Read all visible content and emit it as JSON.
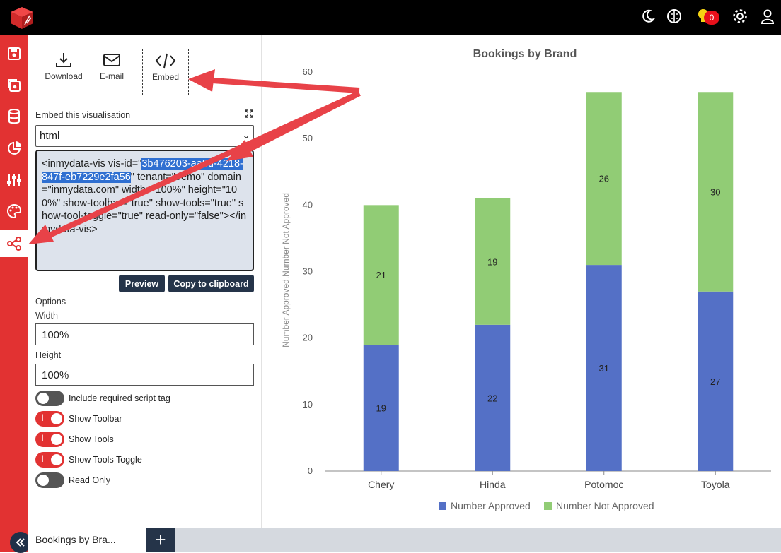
{
  "topbar": {
    "notification_count": "0",
    "icons": [
      "logo-icon",
      "moon-icon",
      "brain-icon",
      "lightbulb-icon",
      "gear-icon",
      "user-icon"
    ]
  },
  "rail": {
    "icons": [
      "save-icon",
      "save-as-icon",
      "database-icon",
      "pie-chart-icon",
      "sliders-icon",
      "palette-icon",
      "share-icon"
    ],
    "active": "share-icon"
  },
  "panel": {
    "toolbar": {
      "download": "Download",
      "email": "E-mail",
      "embed": "Embed"
    },
    "embed_label": "Embed this visualisation",
    "format_value": "html",
    "code_pre": "<inmydata-vis vis-id=\"",
    "code_selected": "3b476203-aa8d-4218-847f-eb7229e2fa56",
    "code_post": "\" tenant=\"demo\" domain=\"inmydata.com\" width=\"100%\" height=\"100%\" show-toolbar=\"true\" show-tools=\"true\" show-tool-toggle=\"true\" read-only=\"false\"></inmydata-vis>",
    "preview_label": "Preview",
    "copy_label": "Copy to clipboard",
    "options_label": "Options",
    "width_label": "Width",
    "width_value": "100%",
    "height_label": "Height",
    "height_value": "100%",
    "toggles": [
      {
        "label": "Include required script tag",
        "on": false
      },
      {
        "label": "Show Toolbar",
        "on": true
      },
      {
        "label": "Show Tools",
        "on": true
      },
      {
        "label": "Show Tools Toggle",
        "on": true
      },
      {
        "label": "Read Only",
        "on": false
      }
    ]
  },
  "bottom": {
    "tab_label": "Bookings by Bra...",
    "close": "×",
    "add": "+"
  },
  "colors": {
    "approved": "#5470c6",
    "not_approved": "#91cc75",
    "accent": "#e23232",
    "dark": "#253449"
  },
  "chart_data": {
    "type": "bar",
    "stacked": true,
    "title": "Bookings by Brand",
    "ylabel": "Number Approved,Number Not Approved",
    "xlabel": "",
    "categories": [
      "Chery",
      "Hinda",
      "Potomoc",
      "Toyola"
    ],
    "series": [
      {
        "name": "Number Approved",
        "values": [
          19,
          22,
          31,
          27
        ]
      },
      {
        "name": "Number Not Approved",
        "values": [
          21,
          19,
          26,
          30
        ]
      }
    ],
    "ylim": [
      0,
      60
    ],
    "yticks": [
      "0",
      "10",
      "20",
      "30",
      "40",
      "50",
      "60"
    ],
    "legend": "bottom",
    "grid": false
  }
}
